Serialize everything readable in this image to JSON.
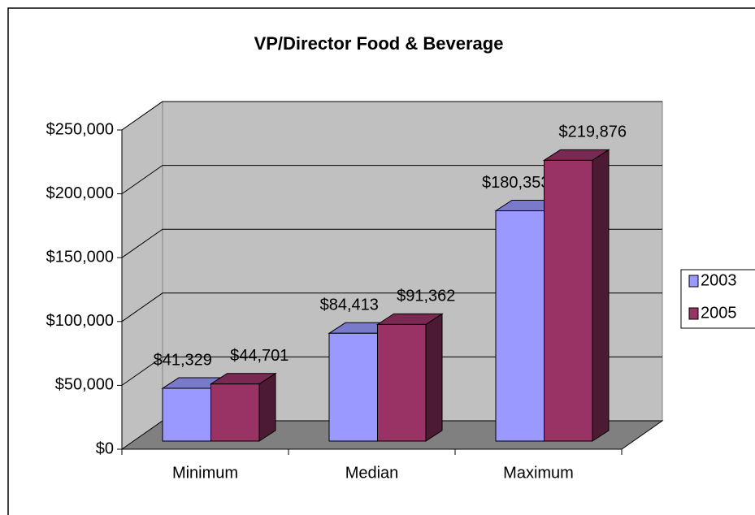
{
  "chart_data": {
    "type": "bar3d",
    "title": "VP/Director Food & Beverage",
    "categories": [
      "Minimum",
      "Median",
      "Maximum"
    ],
    "series": [
      {
        "name": "2003",
        "color": "#9999ff",
        "values": [
          41329,
          84413,
          180353
        ],
        "value_labels": [
          "$41,329",
          "$84,413",
          "$180,353"
        ]
      },
      {
        "name": "2005",
        "color": "#993366",
        "values": [
          44701,
          91362,
          219876
        ],
        "value_labels": [
          "$44,701",
          "$91,362",
          "$219,876"
        ]
      }
    ],
    "ylim": [
      0,
      250000
    ],
    "yticks": [
      {
        "value": 0,
        "label": "$0"
      },
      {
        "value": 50000,
        "label": "$50,000"
      },
      {
        "value": 100000,
        "label": "$100,000"
      },
      {
        "value": 150000,
        "label": "$150,000"
      },
      {
        "value": 200000,
        "label": "$200,000"
      },
      {
        "value": 250000,
        "label": "$250,000"
      }
    ],
    "grid": true,
    "legend": "right"
  }
}
